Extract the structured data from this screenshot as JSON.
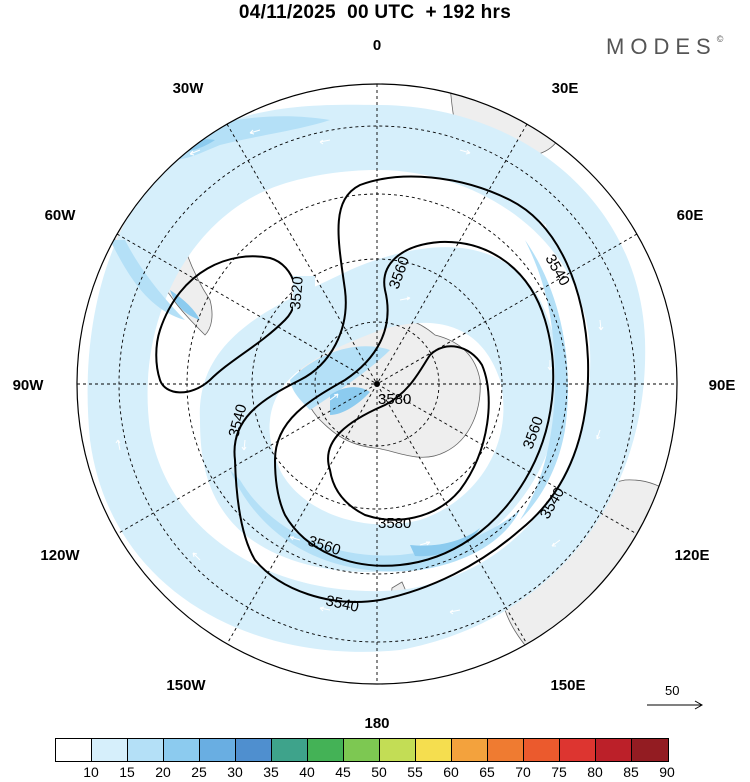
{
  "title": "04/11/2025  00 UTC  + 192 hrs",
  "brand": "MODES",
  "brand_mark": "©",
  "meridian_labels": {
    "m0": "0",
    "m30e": "30E",
    "m60e": "60E",
    "m90e": "90E",
    "m120e": "120E",
    "m150e": "150E",
    "m180": "180",
    "m150w": "150W",
    "m120w": "120W",
    "m90w": "90W",
    "m60w": "60W",
    "m30w": "30W"
  },
  "contours": [
    {
      "value": "3520",
      "label_text": "3520"
    },
    {
      "value": "3540",
      "label_text": "3540"
    },
    {
      "value": "3560",
      "label_text": "3560"
    },
    {
      "value": "3580",
      "label_text": "3580"
    }
  ],
  "contour_labels": {
    "c3520": "3520",
    "c3540a": "3540",
    "c3540b": "3540",
    "c3540c": "3540",
    "c3560a": "3560",
    "c3560b": "3560",
    "c3560c": "3560",
    "c3580a": "3580",
    "c3580b": "3580"
  },
  "vector_reference": {
    "value": "50"
  },
  "colorbar": {
    "labels": [
      "10",
      "15",
      "20",
      "25",
      "30",
      "35",
      "40",
      "45",
      "50",
      "55",
      "60",
      "65",
      "70",
      "75",
      "80",
      "85",
      "90"
    ],
    "colors": [
      "#ffffff",
      "#d6effb",
      "#b4e0f7",
      "#8ccbef",
      "#69aee2",
      "#4f8fcf",
      "#3ea38b",
      "#44b256",
      "#7dc852",
      "#c3dd55",
      "#f5de4f",
      "#f3a23d",
      "#ef7b31",
      "#eb5a2d",
      "#dd3530",
      "#bc2029",
      "#931c22"
    ]
  }
}
